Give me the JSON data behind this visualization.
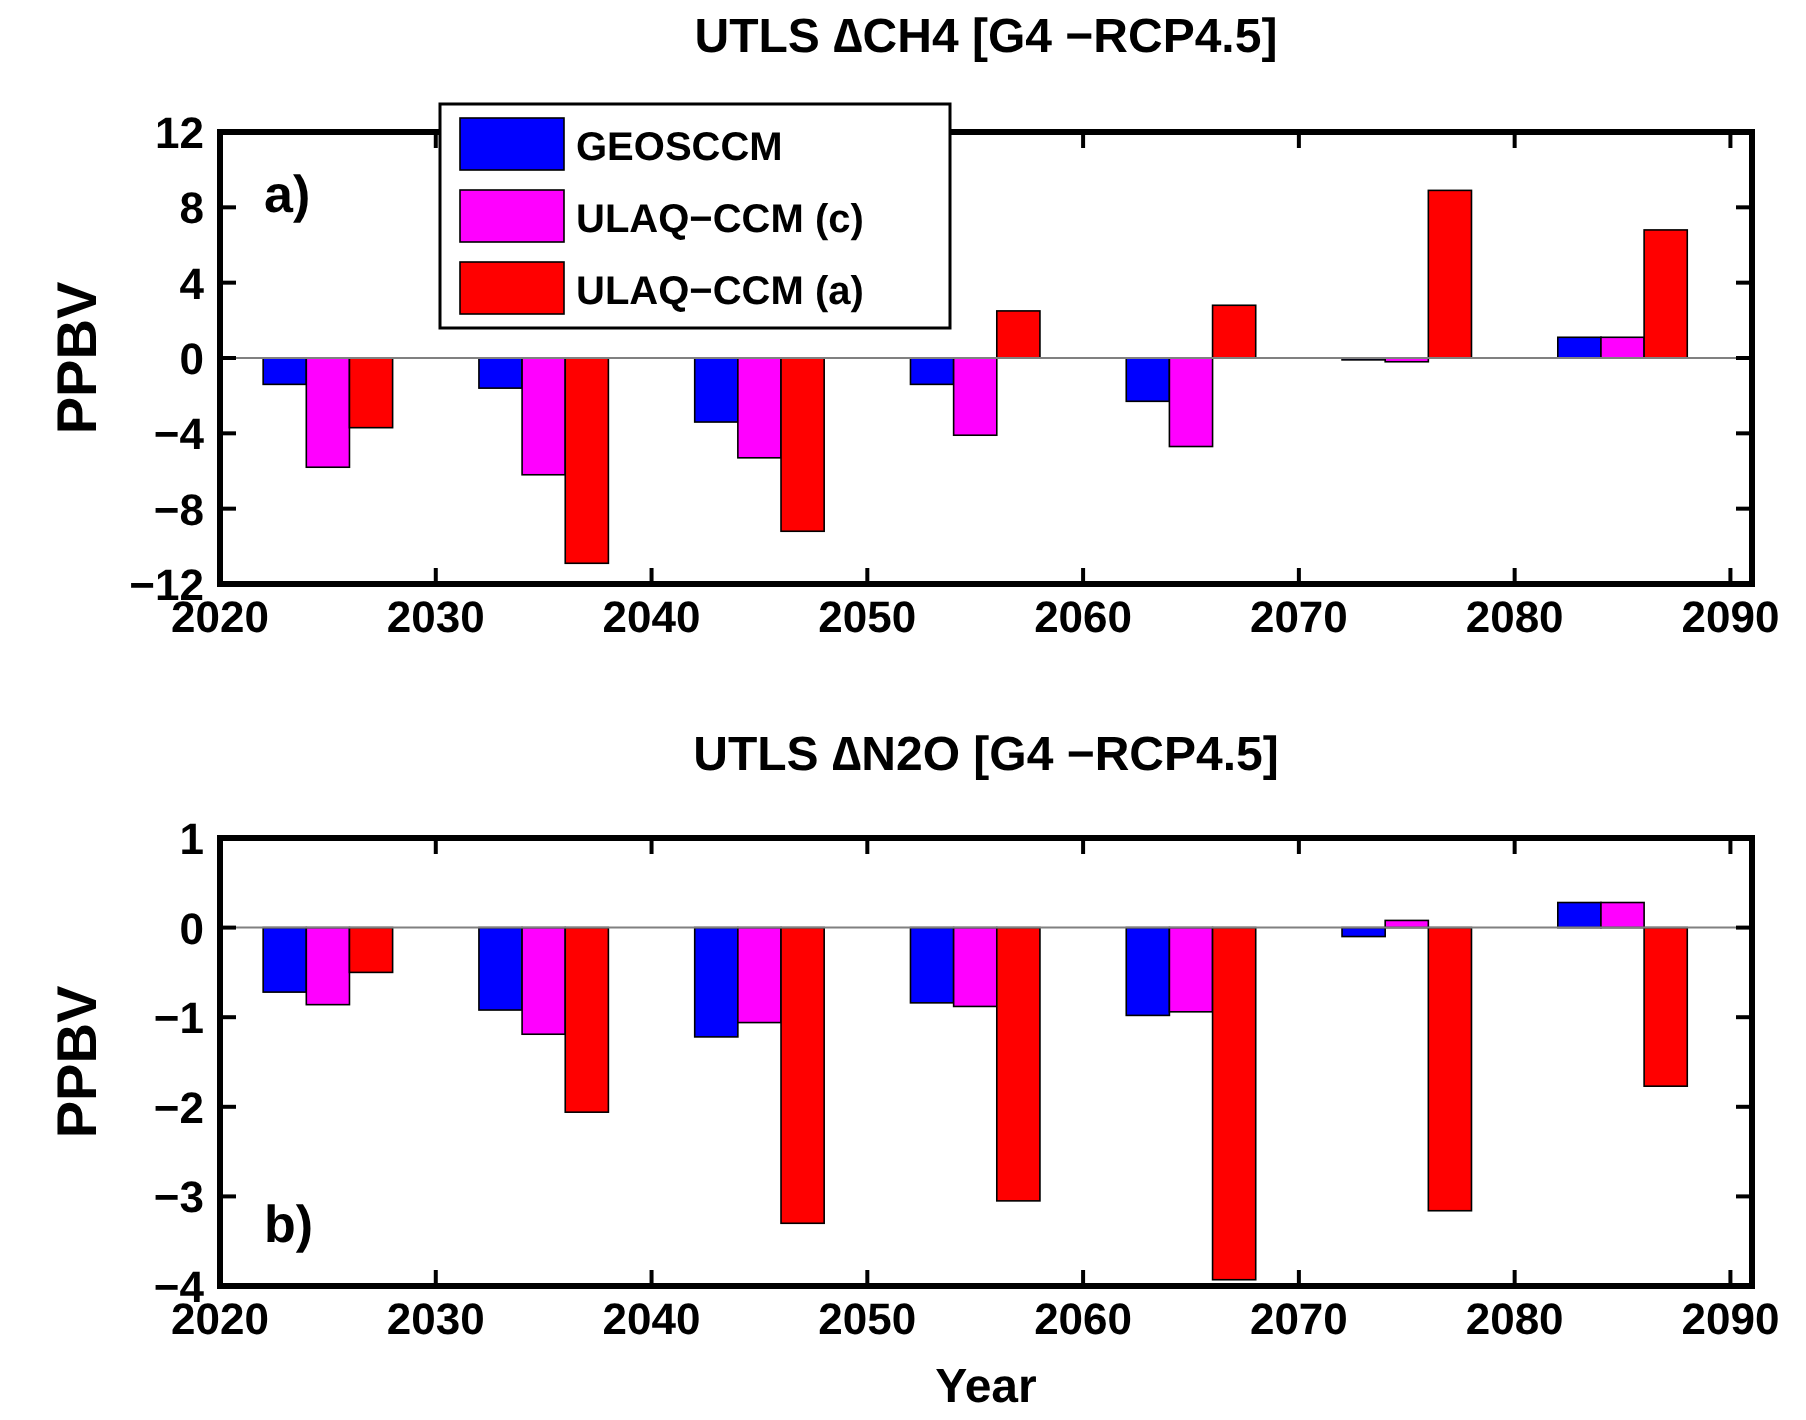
{
  "chart_data": [
    {
      "type": "bar",
      "title": "UTLS ∆CH4 [G4 −RCP4.5]",
      "ylabel": "PPBV",
      "annotations": [
        "a)"
      ],
      "xlim": [
        2020,
        2091
      ],
      "xticks": [
        2020,
        2030,
        2040,
        2050,
        2060,
        2070,
        2080,
        2090
      ],
      "ylim": [
        -12,
        12
      ],
      "yticks": [
        -12,
        -8,
        -4,
        0,
        4,
        8,
        12
      ],
      "legend": "top left",
      "grid": false,
      "ref_lines": [
        {
          "axis": "y",
          "value": 0,
          "color": "#808080"
        }
      ],
      "series": [
        {
          "name": "GEOSCCM",
          "color": "#0000ff",
          "x": [
            2023,
            2033,
            2043,
            2053,
            2063,
            2073,
            2083
          ],
          "values": [
            -1.4,
            -1.6,
            -3.4,
            -1.4,
            -2.3,
            -0.1,
            1.1
          ]
        },
        {
          "name": "ULAQ−CCM (c)",
          "color": "#ff00ff",
          "x": [
            2025,
            2035,
            2045,
            2055,
            2065,
            2075,
            2085
          ],
          "values": [
            -5.8,
            -6.2,
            -5.3,
            -4.1,
            -4.7,
            -0.2,
            1.1
          ]
        },
        {
          "name": "ULAQ−CCM (a)",
          "color": "#ff0000",
          "x": [
            2027,
            2037,
            2047,
            2057,
            2067,
            2077,
            2087
          ],
          "values": [
            -3.7,
            -10.9,
            -9.2,
            2.5,
            2.8,
            8.9,
            6.8
          ]
        }
      ]
    },
    {
      "type": "bar",
      "title": "UTLS ∆N2O [G4 −RCP4.5]",
      "xlabel": "Year",
      "ylabel": "PPBV",
      "annotations": [
        "b)"
      ],
      "xlim": [
        2020,
        2091
      ],
      "xticks": [
        2020,
        2030,
        2040,
        2050,
        2060,
        2070,
        2080,
        2090
      ],
      "ylim": [
        -4,
        1
      ],
      "yticks": [
        -4,
        -3,
        -2,
        -1,
        0,
        1
      ],
      "grid": false,
      "ref_lines": [
        {
          "axis": "y",
          "value": 0,
          "color": "#808080"
        }
      ],
      "series": [
        {
          "color": "#0000ff",
          "x": [
            2023,
            2033,
            2043,
            2053,
            2063,
            2073,
            2083
          ],
          "values": [
            -0.72,
            -0.92,
            -1.22,
            -0.84,
            -0.98,
            -0.1,
            0.28
          ]
        },
        {
          "color": "#ff00ff",
          "x": [
            2025,
            2035,
            2045,
            2055,
            2065,
            2075,
            2085
          ],
          "values": [
            -0.86,
            -1.19,
            -1.06,
            -0.88,
            -0.94,
            0.08,
            0.28
          ]
        },
        {
          "color": "#ff0000",
          "x": [
            2027,
            2037,
            2047,
            2057,
            2067,
            2077,
            2087
          ],
          "values": [
            -0.5,
            -2.06,
            -3.3,
            -3.05,
            -3.93,
            -3.16,
            -1.77
          ]
        }
      ]
    }
  ]
}
